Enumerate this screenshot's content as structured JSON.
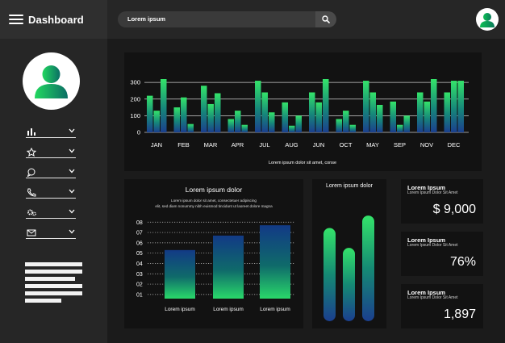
{
  "header": {
    "title": "Dashboard",
    "search_text": "Lorem ipsum"
  },
  "colors": {
    "accent_green": "#2ee06a",
    "accent_blue": "#1e3a8a",
    "panel": "#121212",
    "background": "#1b1b1b"
  },
  "sidebar": {
    "items": [
      {
        "icon": "bar-chart-icon"
      },
      {
        "icon": "star-icon"
      },
      {
        "icon": "chat-icon"
      },
      {
        "icon": "phone-icon"
      },
      {
        "icon": "settings-icon"
      },
      {
        "icon": "mail-icon"
      }
    ]
  },
  "chart_data": [
    {
      "type": "bar",
      "categories": [
        "JAN",
        "FEB",
        "MAR",
        "APR",
        "JUL",
        "AUG",
        "JUN",
        "OCT",
        "MAY",
        "SEP",
        "NOV",
        "DEC"
      ],
      "series": [
        {
          "values": [
            220,
            150,
            280,
            80,
            310,
            180,
            240,
            80,
            310,
            185,
            240,
            240
          ]
        },
        {
          "values": [
            130,
            210,
            170,
            130,
            240,
            40,
            180,
            130,
            240,
            45,
            185,
            310
          ]
        },
        {
          "values": [
            320,
            50,
            235,
            45,
            120,
            100,
            320,
            45,
            165,
            100,
            320,
            310
          ]
        }
      ],
      "ylim": [
        0,
        320
      ],
      "yticks": [
        0,
        100,
        200,
        300
      ],
      "caption": "Lorem ipsum dolor sit amet, conse",
      "grid": true
    },
    {
      "type": "bar",
      "title": "Lorem ipsum dolor",
      "subtitle": "Lorem ipsum dolor sit amet, consectetuer adipiscing elit, sed diam nonummy nibh euismod tincidunt ut laoreet dolore magna",
      "categories": [
        "Lorem ipsum",
        "Lorem ipsum",
        "Lorem ipsum"
      ],
      "values": [
        5.3,
        6.7,
        7.7
      ],
      "yticks": [
        "01",
        "02",
        "03",
        "04",
        "05",
        "06",
        "07",
        "08"
      ],
      "ylim": [
        0.6,
        8.1
      ],
      "grid": true
    },
    {
      "type": "bar",
      "title": "Lorem ipsum dolor",
      "values": [
        0.75,
        0.59,
        0.85
      ]
    }
  ],
  "stats": [
    {
      "title": "Lorem Ipsum",
      "sub": "Lorem Ipsum Dolor Sit Amet",
      "value": "$ 9,000"
    },
    {
      "title": "Lorem Ipsum",
      "sub": "Lorem Ipsum Dolor Sit Amet",
      "value": "76%"
    },
    {
      "title": "Lorem Ipsum",
      "sub": "Lorem Ipsum Dolor Sit Amet",
      "value": "1,897"
    }
  ]
}
